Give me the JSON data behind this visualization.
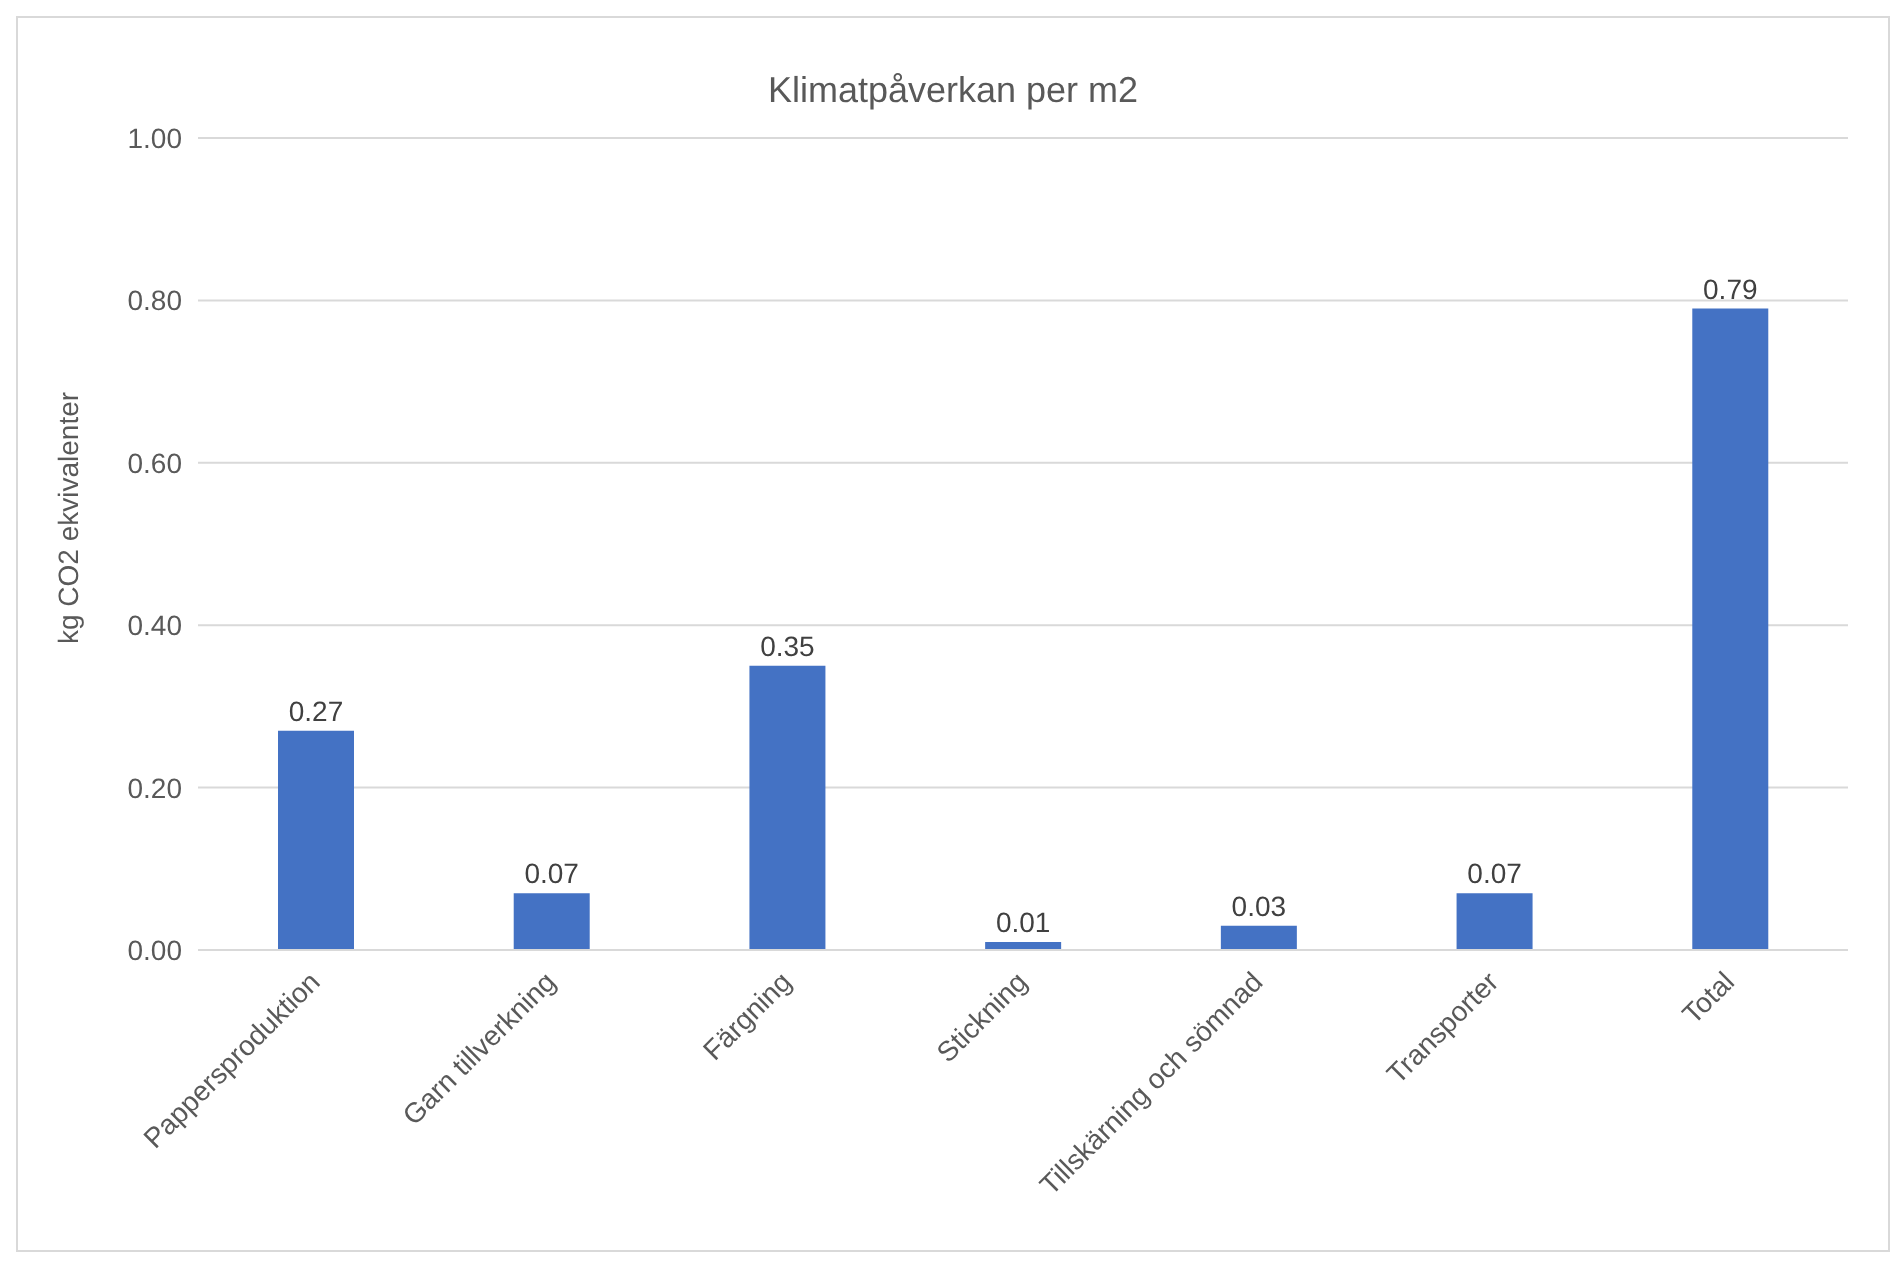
{
  "chart_data": {
    "type": "bar",
    "title": "Klimatpåverkan per m2",
    "ylabel": "kg CO2 ekvivalenter",
    "categories": [
      "Pappersproduktion",
      "Garn tillverkning",
      "Färgning",
      "Stickning",
      "Tillskärning och sömnad",
      "Transporter",
      "Total"
    ],
    "values": [
      0.27,
      0.07,
      0.35,
      0.01,
      0.03,
      0.07,
      0.79
    ],
    "color": "#4472c4",
    "ylim": [
      0,
      1
    ],
    "yticks": [
      {
        "value": 0,
        "label": "0.00"
      },
      {
        "value": 0.2,
        "label": "0.20"
      },
      {
        "value": 0.4,
        "label": "0.40"
      },
      {
        "value": 0.6,
        "label": "0.60"
      },
      {
        "value": 0.8,
        "label": "0.80"
      },
      {
        "value": 1,
        "label": "1.00"
      }
    ],
    "grid": "y",
    "data_labels": true
  }
}
